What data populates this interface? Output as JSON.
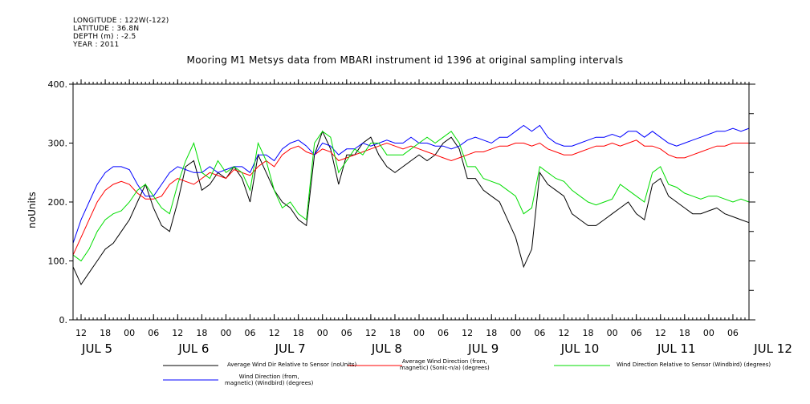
{
  "header": {
    "meta_lines": [
      "LONGITUDE : 122W(-122)",
      "LATITUDE : 36.8N",
      "DEPTH (m) : -2.5",
      "YEAR : 2011"
    ],
    "title": "Mooring M1 Metsys data from MBARI instrument id 1396 at original sampling intervals"
  },
  "chart_data": {
    "type": "line",
    "title": "Mooring M1 Metsys data from MBARI instrument id 1396 at original sampling intervals",
    "xlabel": "",
    "ylabel": "noUnits",
    "ylim": [
      0,
      400
    ],
    "yticks": [
      0,
      100,
      200,
      300,
      400
    ],
    "ytick_labels": [
      "0.",
      "100.",
      "200.",
      "300.",
      "400."
    ],
    "xlim_hours": [
      10,
      178
    ],
    "x_hour_ticks": [
      "12",
      "18",
      "00",
      "06",
      "12",
      "18",
      "00",
      "06",
      "12",
      "18",
      "00",
      "06",
      "12",
      "18",
      "00",
      "06",
      "12",
      "18",
      "00",
      "06",
      "12",
      "18",
      "00",
      "06",
      "12",
      "18",
      "00",
      "06"
    ],
    "x_day_labels": [
      "JUL  5",
      "JUL  6",
      "JUL  7",
      "JUL  8",
      "JUL  9",
      "JUL 10",
      "JUL 11",
      "JUL 12"
    ],
    "grid": false,
    "legend_position": "bottom",
    "series": [
      {
        "name": "Average Wind Dir Relative to Sensor (noUnits)",
        "color": "#000000",
        "x": [
          10,
          12,
          14,
          16,
          18,
          20,
          22,
          24,
          26,
          28,
          30,
          32,
          34,
          36,
          38,
          40,
          42,
          44,
          46,
          48,
          50,
          52,
          54,
          56,
          58,
          60,
          62,
          64,
          66,
          68,
          70,
          72,
          74,
          76,
          78,
          80,
          82,
          84,
          86,
          88,
          90,
          92,
          94,
          96,
          98,
          100,
          102,
          104,
          106,
          108,
          110,
          112,
          114,
          116,
          118,
          120,
          122,
          124,
          126,
          128,
          130,
          132,
          134,
          136,
          138,
          140,
          142,
          144,
          146,
          148,
          150,
          152,
          154,
          156,
          158,
          160,
          162,
          164,
          166,
          168,
          170,
          172,
          174,
          176,
          178
        ],
        "values": [
          90,
          60,
          80,
          100,
          120,
          130,
          150,
          170,
          200,
          230,
          190,
          160,
          150,
          200,
          260,
          270,
          220,
          230,
          250,
          240,
          260,
          240,
          200,
          280,
          250,
          220,
          200,
          190,
          170,
          160,
          280,
          320,
          290,
          230,
          280,
          280,
          300,
          310,
          280,
          260,
          250,
          260,
          270,
          280,
          270,
          280,
          300,
          310,
          290,
          240,
          240,
          220,
          210,
          200,
          170,
          140,
          90,
          120,
          250,
          230,
          220,
          210,
          180,
          170,
          160,
          160,
          170,
          180,
          190,
          200,
          180,
          170,
          230,
          240,
          210,
          200,
          190,
          180,
          180,
          185,
          190,
          180,
          175,
          170,
          165
        ]
      },
      {
        "name": "Average Wind Direction (from, magnetic) (Sonic-n/a) (degrees)",
        "color": "#ff0000",
        "x": [
          10,
          12,
          14,
          16,
          18,
          20,
          22,
          24,
          26,
          28,
          30,
          32,
          34,
          36,
          38,
          40,
          42,
          44,
          46,
          48,
          50,
          52,
          54,
          56,
          58,
          60,
          62,
          64,
          66,
          68,
          70,
          72,
          74,
          76,
          78,
          80,
          82,
          84,
          86,
          88,
          90,
          92,
          94,
          96,
          98,
          100,
          102,
          104,
          106,
          108,
          110,
          112,
          114,
          116,
          118,
          120,
          122,
          124,
          126,
          128,
          130,
          132,
          134,
          136,
          138,
          140,
          142,
          144,
          146,
          148,
          150,
          152,
          154,
          156,
          158,
          160,
          162,
          164,
          166,
          168,
          170,
          172,
          174,
          176,
          178
        ],
        "values": [
          110,
          140,
          170,
          200,
          220,
          230,
          235,
          230,
          215,
          205,
          205,
          210,
          230,
          240,
          235,
          230,
          240,
          250,
          245,
          240,
          255,
          250,
          245,
          260,
          270,
          260,
          280,
          290,
          295,
          285,
          280,
          290,
          285,
          270,
          275,
          280,
          285,
          290,
          295,
          300,
          295,
          290,
          295,
          290,
          285,
          280,
          275,
          270,
          275,
          280,
          285,
          285,
          290,
          295,
          295,
          300,
          300,
          295,
          300,
          290,
          285,
          280,
          280,
          285,
          290,
          295,
          295,
          300,
          295,
          300,
          305,
          295,
          295,
          290,
          280,
          275,
          275,
          280,
          285,
          290,
          295,
          295,
          300,
          300,
          300
        ]
      },
      {
        "name": "Wind Direction Relative to Sensor (Windbird) (degrees)",
        "color": "#00dd00",
        "x": [
          10,
          12,
          14,
          16,
          18,
          20,
          22,
          24,
          26,
          28,
          30,
          32,
          34,
          36,
          38,
          40,
          42,
          44,
          46,
          48,
          50,
          52,
          54,
          56,
          58,
          60,
          62,
          64,
          66,
          68,
          70,
          72,
          74,
          76,
          78,
          80,
          82,
          84,
          86,
          88,
          90,
          92,
          94,
          96,
          98,
          100,
          102,
          104,
          106,
          108,
          110,
          112,
          114,
          116,
          118,
          120,
          122,
          124,
          126,
          128,
          130,
          132,
          134,
          136,
          138,
          140,
          142,
          144,
          146,
          148,
          150,
          152,
          154,
          156,
          158,
          160,
          162,
          164,
          166,
          168,
          170,
          172,
          174,
          176,
          178
        ],
        "values": [
          110,
          100,
          120,
          150,
          170,
          180,
          185,
          200,
          220,
          230,
          210,
          190,
          180,
          230,
          270,
          300,
          250,
          240,
          270,
          250,
          260,
          250,
          220,
          300,
          270,
          220,
          190,
          200,
          180,
          170,
          300,
          320,
          310,
          250,
          270,
          290,
          280,
          300,
          300,
          280,
          280,
          280,
          290,
          300,
          310,
          300,
          310,
          320,
          300,
          260,
          260,
          240,
          235,
          230,
          220,
          210,
          180,
          190,
          260,
          250,
          240,
          235,
          220,
          210,
          200,
          195,
          200,
          205,
          230,
          220,
          210,
          200,
          250,
          260,
          230,
          225,
          215,
          210,
          205,
          210,
          210,
          205,
          200,
          205,
          200
        ]
      },
      {
        "name": "Wind Direction (from, magnetic) (Windbird) (degrees)",
        "color": "#0000ff",
        "x": [
          10,
          12,
          14,
          16,
          18,
          20,
          22,
          24,
          26,
          28,
          30,
          32,
          34,
          36,
          38,
          40,
          42,
          44,
          46,
          48,
          50,
          52,
          54,
          56,
          58,
          60,
          62,
          64,
          66,
          68,
          70,
          72,
          74,
          76,
          78,
          80,
          82,
          84,
          86,
          88,
          90,
          92,
          94,
          96,
          98,
          100,
          102,
          104,
          106,
          108,
          110,
          112,
          114,
          116,
          118,
          120,
          122,
          124,
          126,
          128,
          130,
          132,
          134,
          136,
          138,
          140,
          142,
          144,
          146,
          148,
          150,
          152,
          154,
          156,
          158,
          160,
          162,
          164,
          166,
          168,
          170,
          172,
          174,
          176,
          178
        ],
        "values": [
          130,
          170,
          200,
          230,
          250,
          260,
          260,
          255,
          230,
          210,
          210,
          230,
          250,
          260,
          255,
          250,
          250,
          260,
          250,
          255,
          260,
          260,
          250,
          280,
          280,
          270,
          290,
          300,
          305,
          295,
          280,
          300,
          295,
          280,
          290,
          290,
          300,
          295,
          300,
          305,
          300,
          300,
          310,
          300,
          300,
          295,
          295,
          290,
          295,
          305,
          310,
          305,
          300,
          310,
          310,
          320,
          330,
          320,
          330,
          310,
          300,
          295,
          295,
          300,
          305,
          310,
          310,
          315,
          310,
          320,
          320,
          310,
          320,
          310,
          300,
          295,
          300,
          305,
          310,
          315,
          320,
          320,
          325,
          320,
          325
        ]
      }
    ]
  },
  "legend": {
    "entries": [
      {
        "color": "#000000",
        "lines": [
          "Average Wind Dir Relative to Sensor (noUnits)"
        ]
      },
      {
        "color": "#ff0000",
        "lines": [
          "Average Wind Direction (from,",
          "magnetic) (Sonic-n/a) (degrees)"
        ]
      },
      {
        "color": "#00dd00",
        "lines": [
          "Wind Direction Relative to Sensor (Windbird) (degrees)"
        ]
      },
      {
        "color": "#0000ff",
        "lines": [
          "Wind Direction (from,",
          "magnetic) (Windbird) (degrees)"
        ]
      }
    ]
  }
}
